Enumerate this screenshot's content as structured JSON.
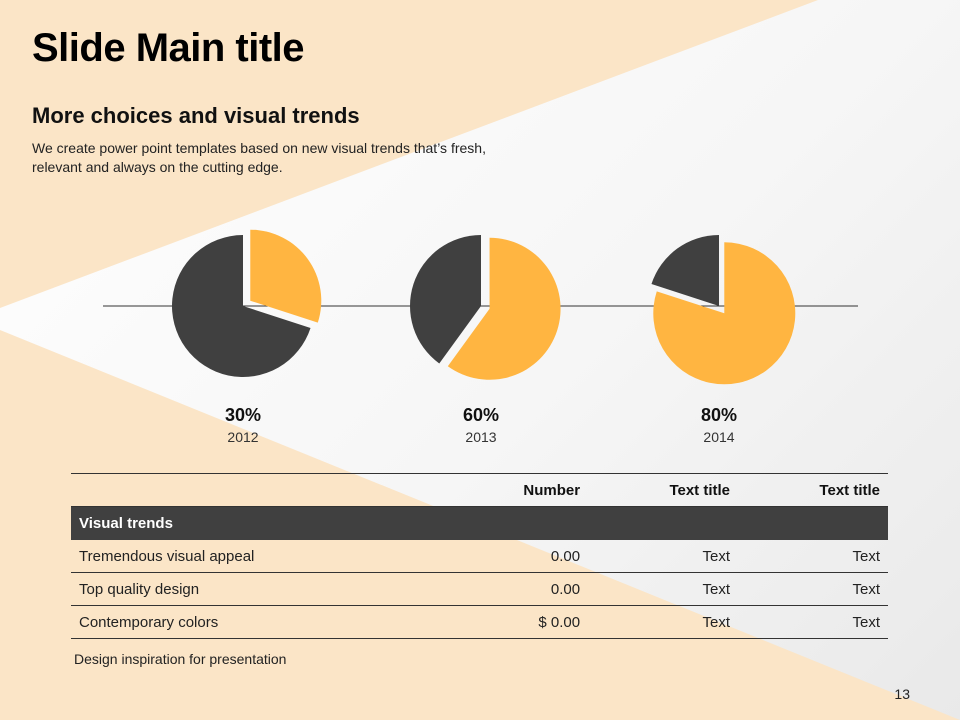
{
  "slide": {
    "title": "Slide Main title",
    "subtitle": "More choices and visual trends",
    "description": "We create power point templates based on new visual trends that’s fresh, relevant and always on the cutting edge.",
    "footnote": "Design inspiration for presentation",
    "page_number": "13"
  },
  "colors": {
    "accent": "#FFB541",
    "dark": "#404040",
    "background_shape": "#FBE5C7"
  },
  "chart_data": {
    "type": "pie",
    "charts": [
      {
        "value_label": "30%",
        "category": "2012",
        "value": 30
      },
      {
        "value_label": "60%",
        "category": "2013",
        "value": 60
      },
      {
        "value_label": "80%",
        "category": "2014",
        "value": 80
      }
    ]
  },
  "table": {
    "headers": [
      "",
      "Number",
      "Text title",
      "Text title"
    ],
    "section_label": "Visual trends",
    "rows": [
      [
        "Tremendous visual appeal",
        "0.00",
        "Text",
        "Text"
      ],
      [
        "Top quality design",
        "0.00",
        "Text",
        "Text"
      ],
      [
        "Contemporary colors",
        "$ 0.00",
        "Text",
        "Text"
      ]
    ]
  }
}
